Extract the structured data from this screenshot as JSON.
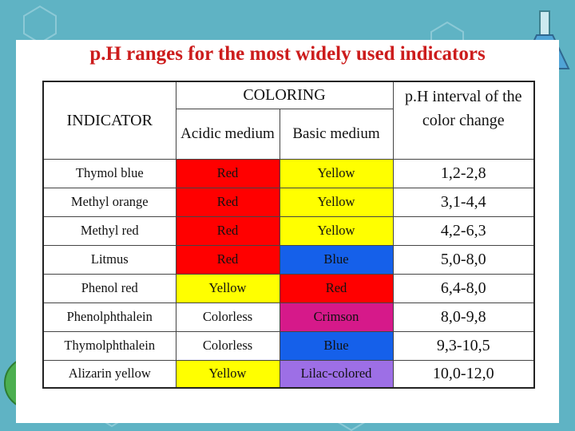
{
  "title": "p.H ranges for the most widely used indicators",
  "header": {
    "indicator": "INDICATOR",
    "coloring": "COLORING",
    "acidic": "Acidic medium",
    "basic": "Basic medium",
    "interval": "p.H interval of the color change"
  },
  "rows": [
    {
      "name": "Thymol blue",
      "acidic": "Red",
      "acidic_color": "#ff0000",
      "basic": "Yellow",
      "basic_color": "#ffff00",
      "range": "1,2-2,8"
    },
    {
      "name": "Methyl orange",
      "acidic": "Red",
      "acidic_color": "#ff0000",
      "basic": "Yellow",
      "basic_color": "#ffff00",
      "range": "3,1-4,4"
    },
    {
      "name": "Methyl red",
      "acidic": "Red",
      "acidic_color": "#ff0000",
      "basic": "Yellow",
      "basic_color": "#ffff00",
      "range": "4,2-6,3"
    },
    {
      "name": "Litmus",
      "acidic": "Red",
      "acidic_color": "#ff0000",
      "basic": "Blue",
      "basic_color": "#1560ea",
      "range": "5,0-8,0"
    },
    {
      "name": "Phenol red",
      "acidic": "Yellow",
      "acidic_color": "#ffff00",
      "basic": "Red",
      "basic_color": "#ff0000",
      "range": "6,4-8,0"
    },
    {
      "name": "Phenolphthalein",
      "acidic": "Colorless",
      "acidic_color": "#ffffff",
      "basic": "Crimson",
      "basic_color": "#d6198a",
      "range": "8,0-9,8"
    },
    {
      "name": "Thymolphthalein",
      "acidic": "Colorless",
      "acidic_color": "#ffffff",
      "basic": "Blue",
      "basic_color": "#1560ea",
      "range": "9,3-10,5"
    },
    {
      "name": "Alizarin yellow",
      "acidic": "Yellow",
      "acidic_color": "#ffff00",
      "basic": "Lilac-colored",
      "basic_color": "#9d6fe6",
      "range": "10,0-12,0"
    }
  ],
  "colors": {
    "background": "#5fb3c4",
    "title": "#cc1c1c"
  }
}
